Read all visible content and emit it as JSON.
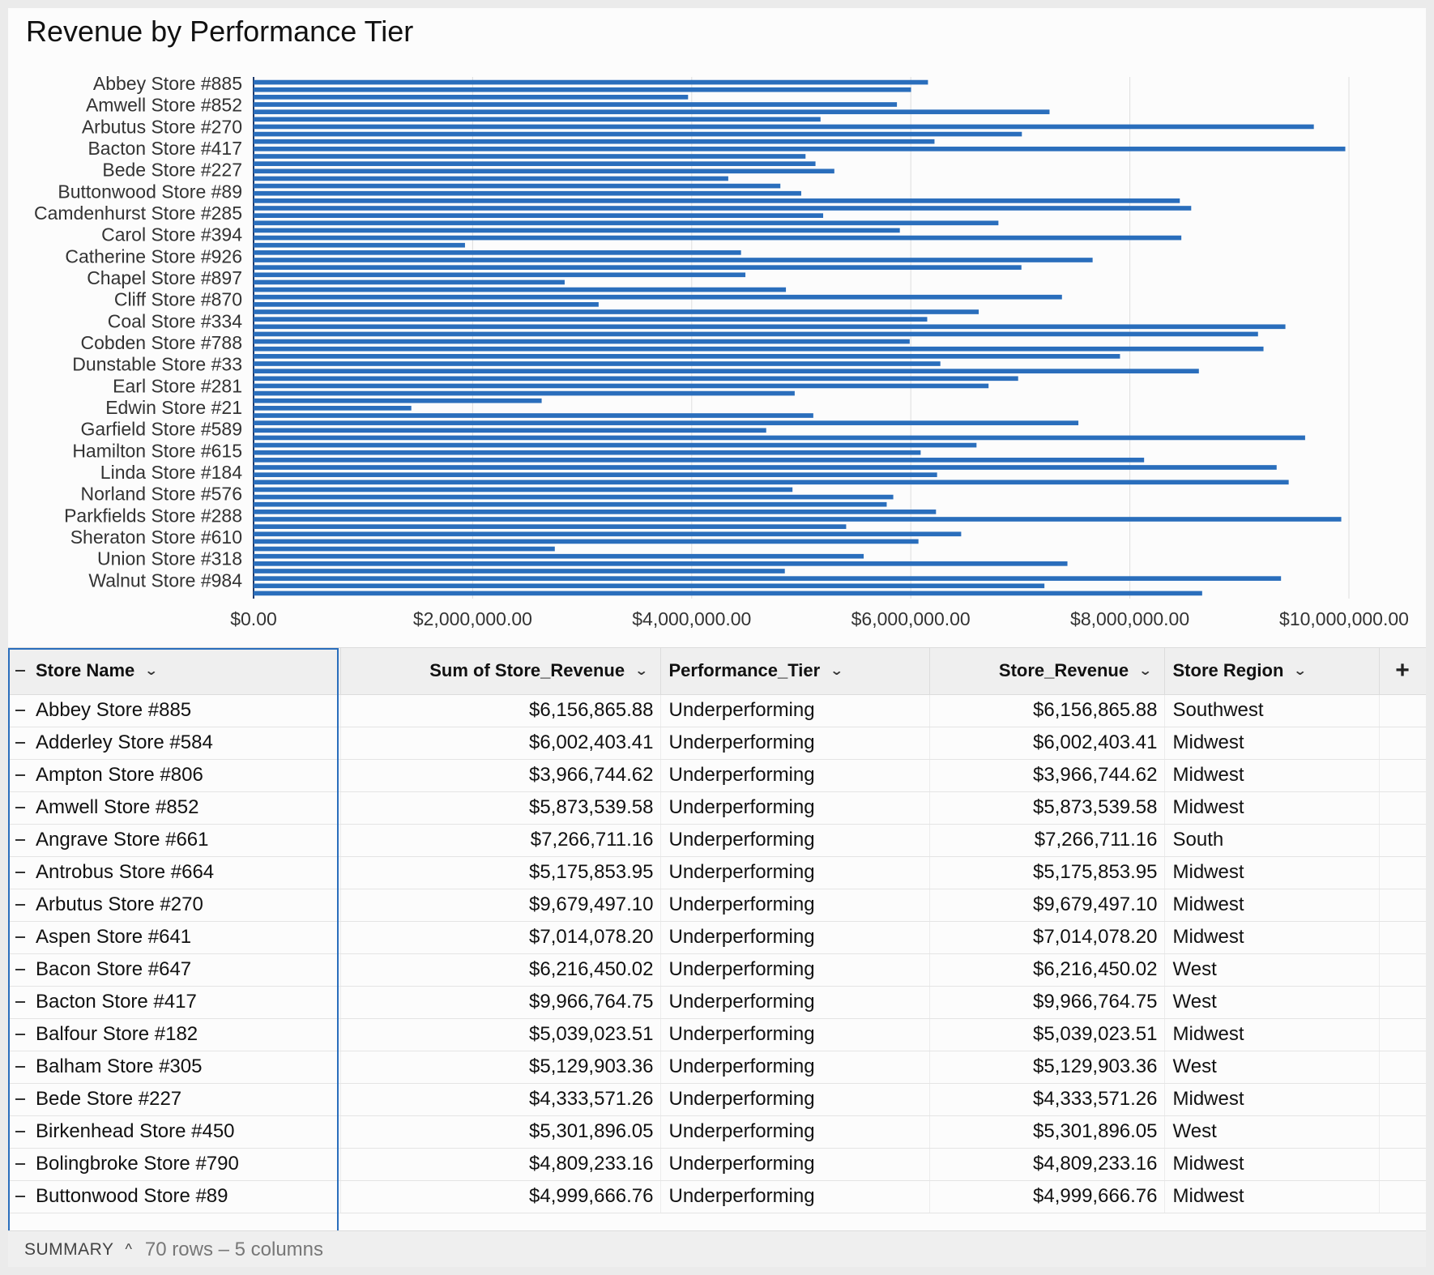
{
  "chart_data": {
    "type": "bar",
    "orientation": "horizontal",
    "title": "Revenue by Performance Tier",
    "color": "#2a6ebc",
    "xlim": [
      0,
      10000000
    ],
    "x_ticks": [
      "$0.00",
      "$2,000,000.00",
      "$4,000,000.00",
      "$6,000,000.00",
      "$8,000,000.00",
      "$10,000,000.00"
    ],
    "x_tick_values": [
      0,
      2000000,
      4000000,
      6000000,
      8000000,
      10000000
    ],
    "y_tick_labels": [
      "Abbey Store #885",
      "Amwell Store #852",
      "Arbutus Store #270",
      "Bacton Store #417",
      "Bede Store #227",
      "Buttonwood Store #89",
      "Camdenhurst Store #285",
      "Carol Store #394",
      "Catherine Store #926",
      "Chapel Store #897",
      "Cliff Store #870",
      "Coal Store #334",
      "Cobden Store #788",
      "Dunstable Store #33",
      "Earl Store #281",
      "Edwin Store #21",
      "Garfield Store #589",
      "Hamilton Store #615",
      "Linda Store #184",
      "Norland Store #576",
      "Parkfields Store #288",
      "Sheraton Store #610",
      "Union Store #318",
      "Walnut Store #984"
    ],
    "grid": true,
    "values": [
      6156866,
      6002403,
      3966745,
      5873540,
      7266711,
      5175854,
      9679497,
      7014078,
      6216450,
      9966765,
      5039024,
      5129903,
      5301896,
      4333571,
      4809233,
      4999667,
      8456000,
      8560000,
      5200000,
      6800000,
      5900000,
      8470000,
      1930000,
      4450000,
      7660000,
      7010000,
      4490000,
      2840000,
      4860000,
      7380000,
      3150000,
      6620000,
      6150000,
      9420000,
      9170000,
      5990000,
      9220000,
      7910000,
      6270000,
      8630000,
      6980000,
      6710000,
      4940000,
      2630000,
      1440000,
      5110000,
      7530000,
      4680000,
      9600000,
      6600000,
      6090000,
      8130000,
      9340000,
      6240000,
      9450000,
      4920000,
      5840000,
      5780000,
      6230000,
      9930000,
      5410000,
      6460000,
      6070000,
      2750000,
      5570000,
      7430000,
      4850000,
      9380000,
      7220000,
      8660000
    ]
  },
  "table": {
    "columns": [
      {
        "label": "Store Name"
      },
      {
        "label": "Sum of Store_Revenue"
      },
      {
        "label": "Performance_Tier"
      },
      {
        "label": "Store_Revenue"
      },
      {
        "label": "Store Region"
      }
    ],
    "add_column_label": "+",
    "rows": [
      {
        "name": "Abbey Store #885",
        "sum": "$6,156,865.88",
        "tier": "Underperforming",
        "rev": "$6,156,865.88",
        "region": "Southwest"
      },
      {
        "name": "Adderley Store #584",
        "sum": "$6,002,403.41",
        "tier": "Underperforming",
        "rev": "$6,002,403.41",
        "region": "Midwest"
      },
      {
        "name": "Ampton Store #806",
        "sum": "$3,966,744.62",
        "tier": "Underperforming",
        "rev": "$3,966,744.62",
        "region": "Midwest"
      },
      {
        "name": "Amwell Store #852",
        "sum": "$5,873,539.58",
        "tier": "Underperforming",
        "rev": "$5,873,539.58",
        "region": "Midwest"
      },
      {
        "name": "Angrave Store #661",
        "sum": "$7,266,711.16",
        "tier": "Underperforming",
        "rev": "$7,266,711.16",
        "region": "South"
      },
      {
        "name": "Antrobus Store #664",
        "sum": "$5,175,853.95",
        "tier": "Underperforming",
        "rev": "$5,175,853.95",
        "region": "Midwest"
      },
      {
        "name": "Arbutus Store #270",
        "sum": "$9,679,497.10",
        "tier": "Underperforming",
        "rev": "$9,679,497.10",
        "region": "Midwest"
      },
      {
        "name": "Aspen Store #641",
        "sum": "$7,014,078.20",
        "tier": "Underperforming",
        "rev": "$7,014,078.20",
        "region": "Midwest"
      },
      {
        "name": "Bacon Store #647",
        "sum": "$6,216,450.02",
        "tier": "Underperforming",
        "rev": "$6,216,450.02",
        "region": "West"
      },
      {
        "name": "Bacton Store #417",
        "sum": "$9,966,764.75",
        "tier": "Underperforming",
        "rev": "$9,966,764.75",
        "region": "West"
      },
      {
        "name": "Balfour Store #182",
        "sum": "$5,039,023.51",
        "tier": "Underperforming",
        "rev": "$5,039,023.51",
        "region": "Midwest"
      },
      {
        "name": "Balham Store #305",
        "sum": "$5,129,903.36",
        "tier": "Underperforming",
        "rev": "$5,129,903.36",
        "region": "West"
      },
      {
        "name": "Bede Store #227",
        "sum": "$4,333,571.26",
        "tier": "Underperforming",
        "rev": "$4,333,571.26",
        "region": "Midwest"
      },
      {
        "name": "Birkenhead Store #450",
        "sum": "$5,301,896.05",
        "tier": "Underperforming",
        "rev": "$5,301,896.05",
        "region": "West"
      },
      {
        "name": "Bolingbroke Store #790",
        "sum": "$4,809,233.16",
        "tier": "Underperforming",
        "rev": "$4,809,233.16",
        "region": "Midwest"
      },
      {
        "name": "Buttonwood Store #89",
        "sum": "$4,999,666.76",
        "tier": "Underperforming",
        "rev": "$4,999,666.76",
        "region": "Midwest"
      }
    ]
  },
  "summary": {
    "label": "SUMMARY",
    "caret": "^",
    "count": "70 rows – 5 columns"
  }
}
